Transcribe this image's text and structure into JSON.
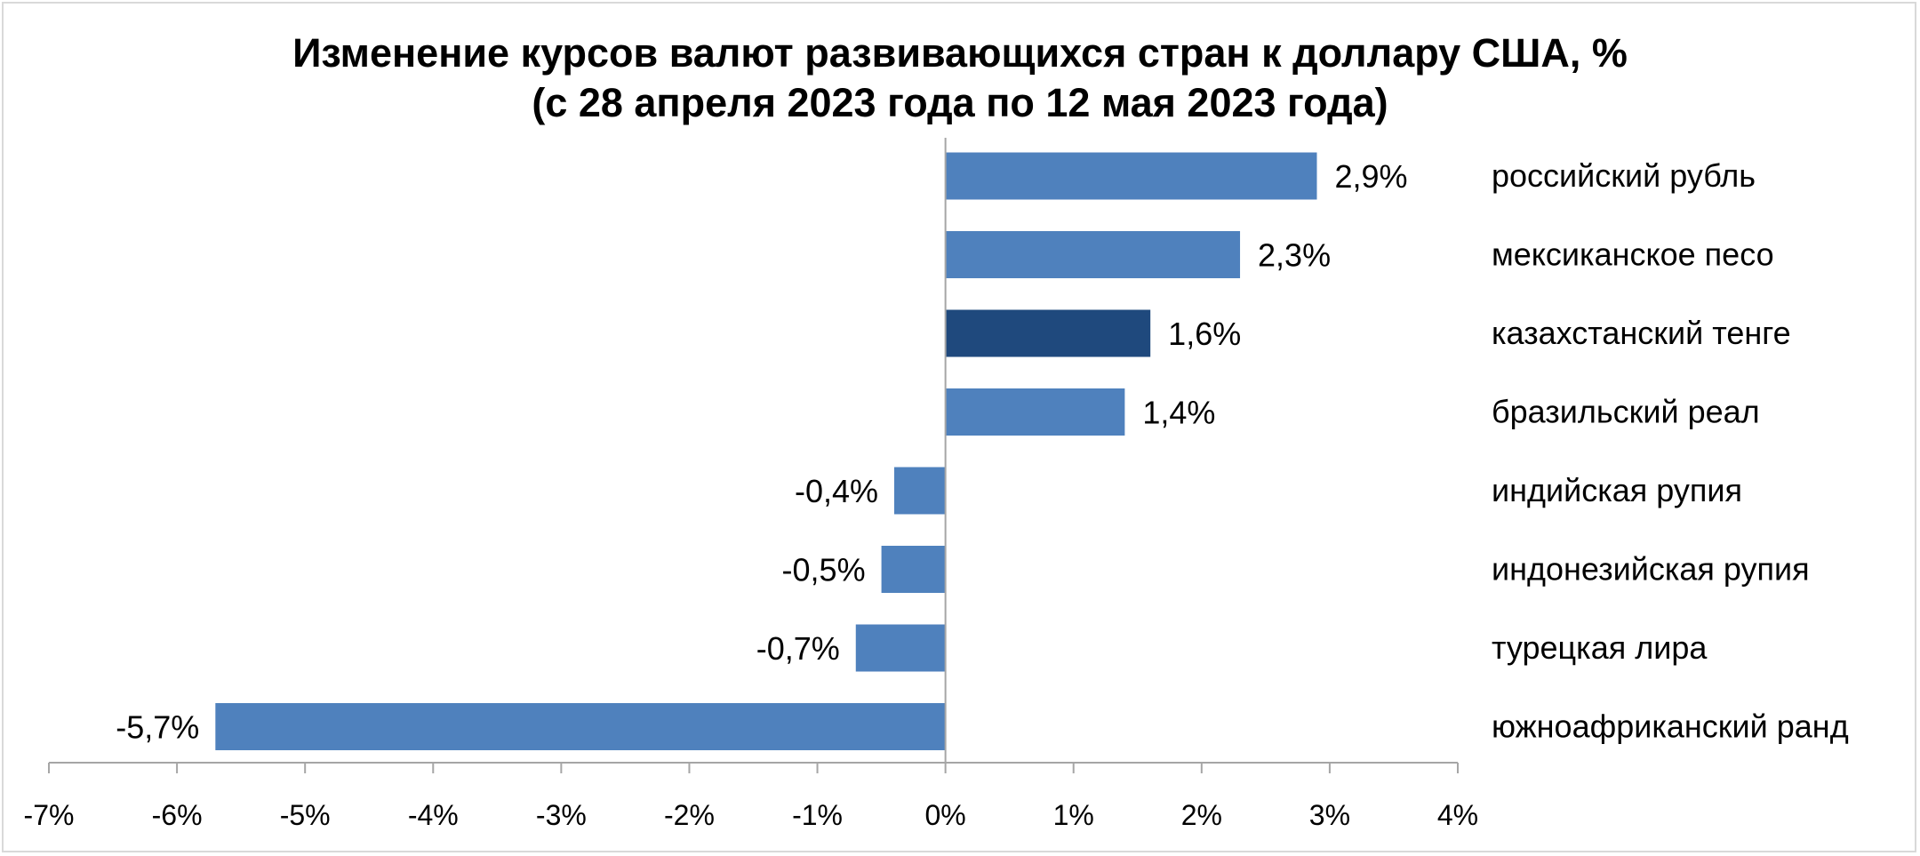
{
  "chart_data": {
    "type": "bar",
    "orientation": "horizontal",
    "title": "Изменение курсов валют развивающихся стран к доллару США, %",
    "subtitle": "(с 28 апреля 2023 года по 12 мая 2023 года)",
    "categories": [
      "российский рубль",
      "мексиканское песо",
      "казахстанский тенге",
      "бразильский реал",
      "индийская рупия",
      "индонезийская рупия",
      "турецкая лира",
      "южноафриканский ранд"
    ],
    "values": [
      2.9,
      2.3,
      1.6,
      1.4,
      -0.4,
      -0.5,
      -0.7,
      -5.7
    ],
    "value_labels": [
      "2,9%",
      "2,3%",
      "1,6%",
      "1,4%",
      "-0,4%",
      "-0,5%",
      "-0,7%",
      "-5,7%"
    ],
    "highlight_index": 2,
    "xlim": [
      -7,
      4
    ],
    "x_ticks": [
      -7,
      -6,
      -5,
      -4,
      -3,
      -2,
      -1,
      0,
      1,
      2,
      3,
      4
    ],
    "x_tick_labels": [
      "-7%",
      "-6%",
      "-5%",
      "-4%",
      "-3%",
      "-2%",
      "-1%",
      "0%",
      "1%",
      "2%",
      "3%",
      "4%"
    ],
    "grid": false,
    "legend": "none",
    "colors": {
      "bar": "#4f81bd",
      "highlight": "#1f497d",
      "axis": "#a6a6a6",
      "border": "#d9d9d9"
    }
  }
}
